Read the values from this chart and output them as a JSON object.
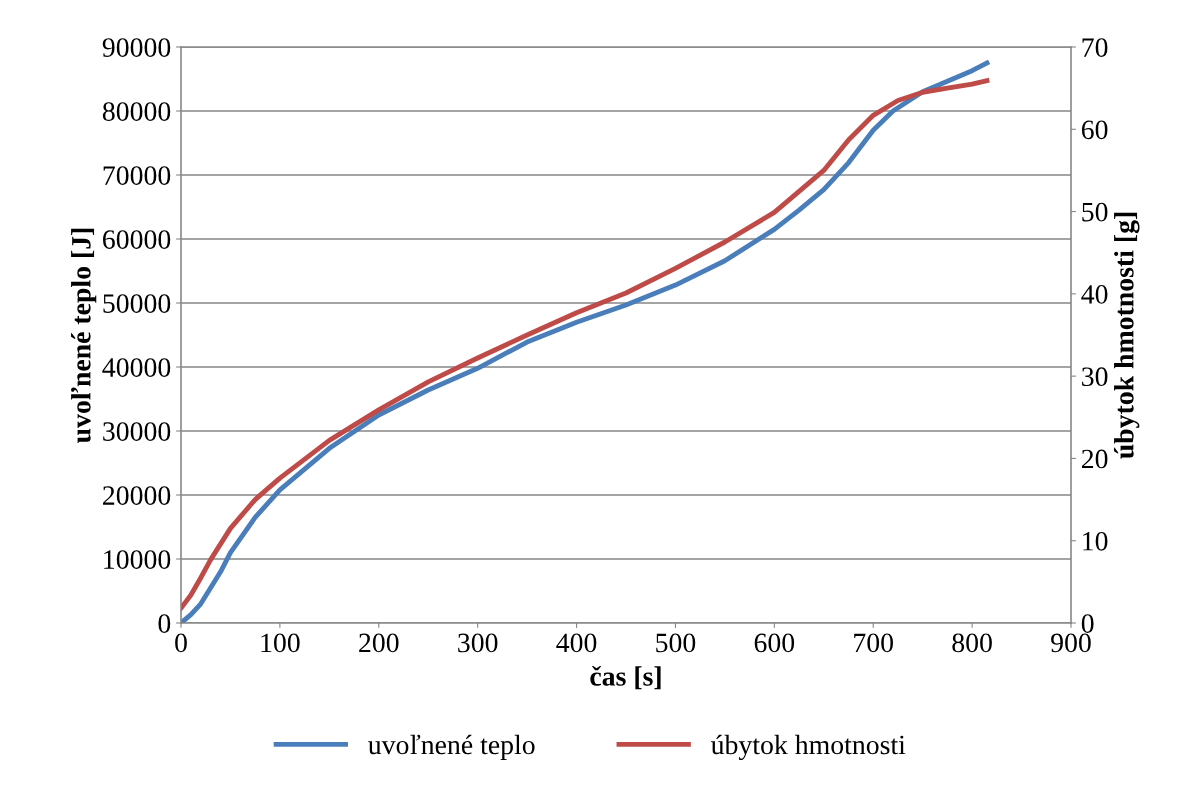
{
  "chart_data": {
    "type": "line",
    "xlabel": "čas [s]",
    "ylabel": "uvoľnené teplo [J]",
    "y2label": "úbytok hmotnosti [g]",
    "xlim": [
      0,
      900
    ],
    "xticks": [
      0,
      100,
      200,
      300,
      400,
      500,
      600,
      700,
      800,
      900
    ],
    "ylim": [
      0,
      90000
    ],
    "yticks": [
      0,
      10000,
      20000,
      30000,
      40000,
      50000,
      60000,
      70000,
      80000,
      90000
    ],
    "y2lim": [
      0,
      70
    ],
    "y2ticks": [
      0,
      10,
      20,
      30,
      40,
      50,
      60,
      70
    ],
    "grid": "y",
    "legend": "bottom",
    "marker": "none",
    "line_style": "solid",
    "series": [
      {
        "name": "uvoľnené teplo",
        "color": "#4a7ebb",
        "x": [
          0,
          10,
          20,
          30,
          40,
          50,
          75,
          100,
          150,
          200,
          250,
          300,
          350,
          400,
          450,
          500,
          550,
          600,
          625,
          650,
          675,
          700,
          720,
          750,
          800,
          815
        ],
        "values": [
          0,
          1300,
          3000,
          5500,
          8000,
          11000,
          16500,
          20800,
          27300,
          32500,
          36400,
          39800,
          43900,
          47000,
          49700,
          52800,
          56600,
          61500,
          64500,
          67700,
          71900,
          77000,
          80000,
          83000,
          86300,
          87500
        ]
      },
      {
        "name": "úbytok hmotnosti",
        "color": "#be4b48",
        "axis": "y2",
        "x": [
          0,
          10,
          20,
          30,
          50,
          75,
          100,
          150,
          200,
          250,
          300,
          350,
          400,
          450,
          500,
          550,
          600,
          650,
          675,
          700,
          725,
          750,
          775,
          800,
          815
        ],
        "values": [
          1.8,
          3.4,
          5.5,
          7.7,
          11.5,
          15,
          17.6,
          22.2,
          25.9,
          29.3,
          32.2,
          35,
          37.7,
          40.1,
          43.1,
          46.3,
          49.9,
          55,
          58.7,
          61.7,
          63.5,
          64.5,
          65,
          65.5,
          65.9
        ]
      }
    ]
  }
}
